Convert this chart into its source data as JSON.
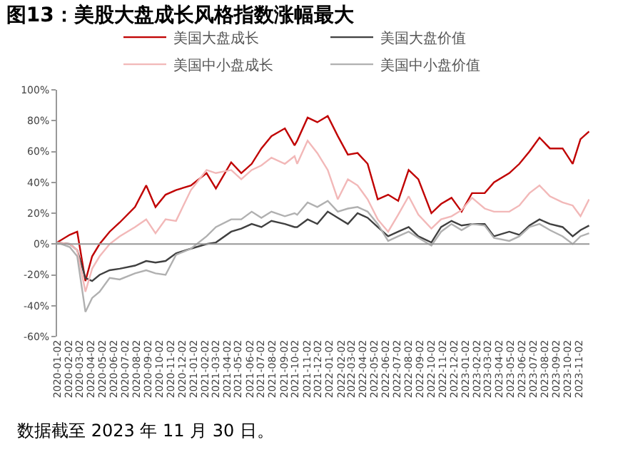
{
  "chart_data": {
    "type": "line",
    "title": "图13：美股大盘成长风格指数涨幅最大",
    "annotations": [
      "数据截至 2023 年 11 月 30 日。"
    ],
    "x": [
      "2020-01-02",
      "2020-02-05",
      "2020-02-25",
      "2020-03-18",
      "2020-04-05",
      "2020-04-25",
      "2020-05-22",
      "2020-06-18",
      "2020-07-29",
      "2020-08-28",
      "2020-09-22",
      "2020-10-19",
      "2020-11-16",
      "2020-12-26",
      "2021-02-06",
      "2021-03-03",
      "2021-04-13",
      "2021-05-10",
      "2021-06-07",
      "2021-07-03",
      "2021-07-30",
      "2021-09-04",
      "2021-09-30",
      "2021-10-07",
      "2021-11-04",
      "2021-11-30",
      "2021-12-28",
      "2022-01-24",
      "2022-02-20",
      "2022-03-18",
      "2022-04-14",
      "2022-05-11",
      "2022-06-08",
      "2022-07-05",
      "2022-08-02",
      "2022-08-28",
      "2022-10-02",
      "2022-10-28",
      "2022-11-25",
      "2022-12-22",
      "2023-01-19",
      "2023-02-22",
      "2023-03-19",
      "2023-04-29",
      "2023-05-26",
      "2023-06-22",
      "2023-07-19",
      "2023-08-16",
      "2023-09-19",
      "2023-10-16",
      "2023-11-06",
      "2023-11-29"
    ],
    "series": [
      {
        "name": "美国大盘成长",
        "color": "#c00000",
        "values": [
          1,
          6,
          8,
          -24,
          -8,
          0,
          8,
          14,
          24,
          38,
          24,
          32,
          35,
          38,
          46,
          36,
          53,
          46,
          52,
          62,
          70,
          75,
          64,
          67,
          82,
          79,
          83,
          70,
          58,
          59,
          52,
          29,
          32,
          28,
          48,
          42,
          20,
          26,
          30,
          21,
          33,
          33,
          40,
          46,
          52,
          60,
          69,
          62,
          62,
          52,
          68,
          73
        ]
      },
      {
        "name": "美国大盘价值",
        "color": "#404040",
        "values": [
          1,
          0,
          -4,
          -22,
          -24,
          -20,
          -17,
          -16,
          -14,
          -11,
          -12,
          -11,
          -6,
          -3,
          0,
          1,
          8,
          10,
          13,
          11,
          15,
          13,
          11,
          11,
          16,
          13,
          21,
          17,
          13,
          20,
          17,
          11,
          5,
          8,
          11,
          5,
          1,
          11,
          15,
          12,
          13,
          13,
          5,
          8,
          6,
          12,
          16,
          13,
          11,
          5,
          9,
          12
        ]
      },
      {
        "name": "美国中小盘成长",
        "color": "#f2b8b8",
        "values": [
          1,
          0,
          -4,
          -31,
          -16,
          -8,
          0,
          5,
          11,
          16,
          7,
          16,
          15,
          35,
          48,
          46,
          48,
          42,
          48,
          51,
          56,
          52,
          57,
          52,
          67,
          59,
          48,
          29,
          42,
          38,
          29,
          16,
          8,
          19,
          31,
          19,
          10,
          16,
          18,
          22,
          30,
          23,
          21,
          21,
          25,
          33,
          38,
          31,
          27,
          25,
          18,
          29
        ]
      },
      {
        "name": "美国中小盘价值",
        "color": "#b0b0b0",
        "values": [
          1,
          -2,
          -8,
          -44,
          -35,
          -31,
          -22,
          -23,
          -19,
          -17,
          -19,
          -20,
          -7,
          -3,
          5,
          11,
          16,
          16,
          21,
          17,
          21,
          18,
          20,
          19,
          27,
          24,
          28,
          21,
          23,
          24,
          21,
          13,
          2,
          5,
          8,
          4,
          -1,
          8,
          13,
          9,
          13,
          12,
          4,
          2,
          5,
          11,
          13,
          9,
          5,
          0,
          5,
          7
        ]
      }
    ],
    "xlim": [
      "2020-01-02",
      "2023-11-30"
    ],
    "xticks": [
      "2020-01-02",
      "2020-02-02",
      "2020-03-02",
      "2020-04-02",
      "2020-05-02",
      "2020-06-02",
      "2020-07-02",
      "2020-08-02",
      "2020-09-02",
      "2020-10-02",
      "2020-11-02",
      "2020-12-02",
      "2021-01-02",
      "2021-02-02",
      "2021-03-02",
      "2021-04-02",
      "2021-05-02",
      "2021-06-02",
      "2021-07-02",
      "2021-08-02",
      "2021-09-02",
      "2021-10-02",
      "2021-11-02",
      "2021-12-02",
      "2022-01-02",
      "2022-02-02",
      "2022-03-02",
      "2022-04-02",
      "2022-05-02",
      "2022-06-02",
      "2022-07-02",
      "2022-08-02",
      "2022-09-02",
      "2022-10-02",
      "2022-11-02",
      "2022-12-02",
      "2023-01-02",
      "2023-02-02",
      "2023-03-02",
      "2023-04-02",
      "2023-05-02",
      "2023-06-02",
      "2023-07-02",
      "2023-08-02",
      "2023-09-02",
      "2023-10-02",
      "2023-11-02"
    ],
    "ylim": [
      -60,
      100
    ],
    "yticks": [
      {
        "value": -60,
        "label": "-60%"
      },
      {
        "value": -40,
        "label": "-40%"
      },
      {
        "value": -20,
        "label": "-20%"
      },
      {
        "value": 0,
        "label": "0%"
      },
      {
        "value": 20,
        "label": "20%"
      },
      {
        "value": 40,
        "label": "40%"
      },
      {
        "value": 60,
        "label": "60%"
      },
      {
        "value": 80,
        "label": "80%"
      },
      {
        "value": 100,
        "label": "100%"
      }
    ],
    "ref_lines": [
      {
        "axis": "y",
        "value": 0,
        "color": "#999999"
      }
    ],
    "grid": false,
    "legend": "top",
    "marker": "none",
    "line_style": "solid"
  }
}
